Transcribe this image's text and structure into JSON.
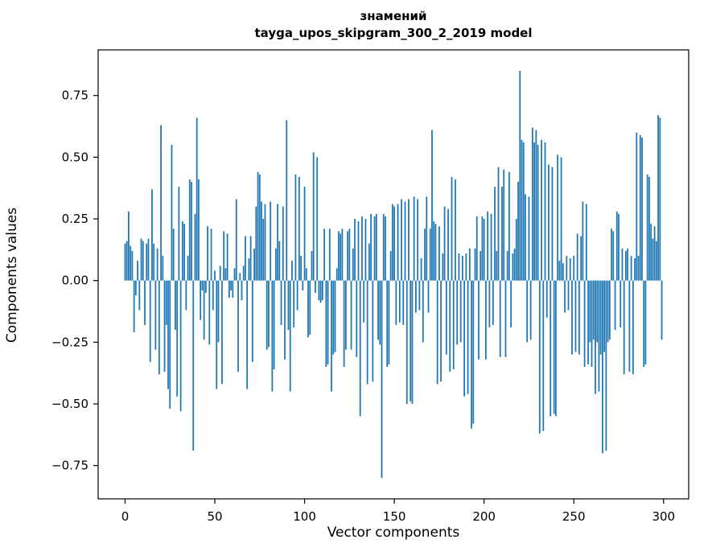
{
  "chart_data": {
    "type": "bar",
    "title_line1": "знамений",
    "title_line2": "tayga_upos_skipgram_300_2_2019 model",
    "xlabel": "Vector components",
    "ylabel": "Components values",
    "bar_color": "#1f77b4",
    "spine_color": "#000000",
    "xlim": [
      -15,
      314
    ],
    "ylim": [
      -0.885,
      0.935
    ],
    "xticks": [
      0,
      50,
      100,
      150,
      200,
      250,
      300
    ],
    "yticks": [
      -0.75,
      -0.5,
      -0.25,
      0,
      0.25,
      0.5,
      0.75
    ],
    "ytick_labels": [
      "−0.75",
      "−0.50",
      "−0.25",
      "0.00",
      "0.25",
      "0.50",
      "0.75"
    ],
    "legend": "none",
    "grid": false,
    "values": [
      0.15,
      0.16,
      0.28,
      0.14,
      0.12,
      -0.21,
      -0.06,
      0.08,
      -0.12,
      0.17,
      0.16,
      -0.18,
      0.15,
      0.17,
      -0.33,
      0.37,
      0.15,
      -0.28,
      0.13,
      -0.38,
      0.63,
      0.1,
      -0.37,
      -0.18,
      -0.44,
      -0.52,
      0.55,
      0.21,
      -0.2,
      -0.47,
      0.38,
      -0.53,
      0.24,
      0.23,
      -0.12,
      0.1,
      0.41,
      0.4,
      -0.69,
      0.27,
      0.66,
      0.41,
      -0.16,
      -0.04,
      -0.24,
      -0.05,
      0.22,
      -0.26,
      0.21,
      -0.12,
      0.04,
      -0.44,
      -0.25,
      0.06,
      -0.42,
      0.2,
      0.05,
      0.19,
      -0.07,
      -0.04,
      -0.07,
      0.05,
      0.33,
      -0.37,
      0.03,
      -0.08,
      0.06,
      0.18,
      -0.44,
      0.09,
      0.18,
      -0.33,
      0.13,
      0.3,
      0.44,
      0.43,
      0.32,
      0.25,
      0.31,
      -0.28,
      -0.27,
      0.32,
      -0.45,
      -0.36,
      0.13,
      0.31,
      0.16,
      -0.18,
      0.3,
      -0.32,
      0.65,
      -0.2,
      -0.45,
      0.08,
      -0.19,
      0.43,
      -0.12,
      0.42,
      0.1,
      -0.04,
      0.38,
      0.05,
      -0.23,
      -0.22,
      0.12,
      0.52,
      -0.05,
      0.5,
      -0.08,
      -0.09,
      -0.08,
      0.21,
      -0.35,
      -0.34,
      0.21,
      -0.45,
      -0.3,
      -0.29,
      0.05,
      0.2,
      0.19,
      0.21,
      -0.35,
      -0.28,
      0.2,
      0.21,
      -0.28,
      0.13,
      0.25,
      -0.31,
      0.24,
      -0.55,
      0.26,
      -0.17,
      0.25,
      -0.42,
      0.15,
      0.27,
      -0.41,
      0.26,
      0.27,
      -0.24,
      -0.26,
      -0.8,
      0.27,
      0.26,
      -0.35,
      -0.34,
      0.12,
      0.31,
      0.3,
      -0.18,
      0.31,
      -0.17,
      0.33,
      -0.18,
      0.32,
      -0.5,
      0.33,
      -0.49,
      -0.5,
      0.34,
      -0.13,
      0.33,
      -0.12,
      0.09,
      -0.25,
      0.21,
      0.34,
      -0.13,
      0.21,
      0.61,
      0.24,
      0.23,
      -0.42,
      0.22,
      -0.41,
      0.11,
      0.3,
      -0.3,
      0.29,
      -0.37,
      0.42,
      -0.36,
      0.41,
      -0.26,
      0.11,
      -0.25,
      0.1,
      -0.47,
      0.11,
      -0.46,
      0.13,
      -0.6,
      -0.58,
      0.13,
      0.26,
      -0.32,
      0.12,
      0.26,
      0.25,
      -0.32,
      0.28,
      -0.19,
      0.27,
      -0.18,
      0.38,
      0.12,
      0.46,
      -0.31,
      0.38,
      0.45,
      -0.31,
      0.12,
      0.44,
      -0.19,
      0.11,
      0.13,
      0.25,
      0.4,
      0.85,
      0.57,
      0.56,
      0.35,
      -0.25,
      0.34,
      -0.24,
      0.62,
      0.56,
      0.61,
      0.55,
      -0.62,
      0.57,
      -0.61,
      0.56,
      -0.15,
      0.47,
      -0.55,
      0.46,
      -0.54,
      -0.55,
      0.51,
      0.08,
      0.5,
      0.07,
      -0.13,
      0.1,
      -0.12,
      0.09,
      -0.3,
      0.1,
      -0.29,
      0.19,
      -0.3,
      0.18,
      0.32,
      -0.35,
      0.31,
      -0.34,
      -0.25,
      -0.35,
      -0.24,
      -0.46,
      -0.25,
      -0.45,
      -0.3,
      -0.7,
      -0.29,
      -0.69,
      -0.25,
      -0.24,
      0.21,
      0.2,
      -0.2,
      0.28,
      0.27,
      -0.19,
      0.13,
      -0.38,
      0.12,
      0.13,
      -0.37,
      0.1,
      -0.38,
      0.09,
      0.6,
      0.1,
      0.59,
      0.58,
      -0.35,
      -0.34,
      0.43,
      0.42,
      0.23,
      0.17,
      0.22,
      0.16,
      0.67,
      0.66,
      -0.24
    ]
  }
}
